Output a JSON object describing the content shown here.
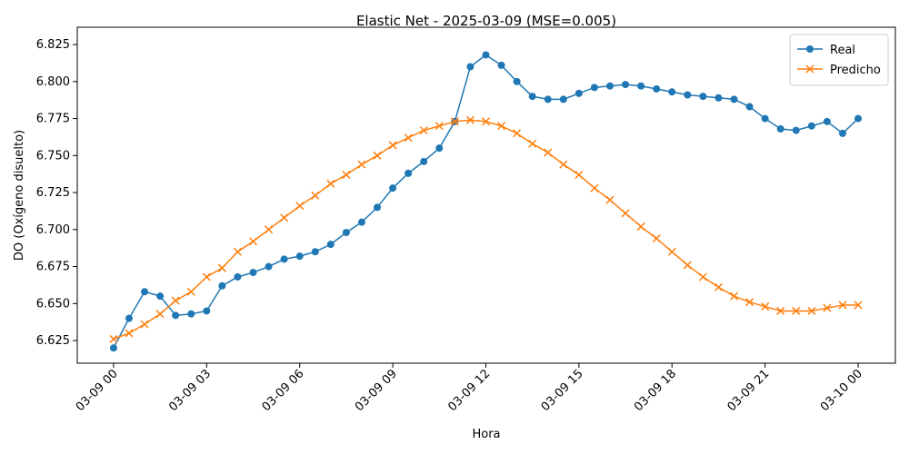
{
  "chart_data": {
    "type": "line",
    "title": "Elastic Net - 2025-03-09 (MSE=0.005)",
    "x_label": "Hora",
    "y_label": "DO (Oxígeno disuelto)",
    "x": [
      0,
      0.5,
      1,
      1.5,
      2,
      2.5,
      3,
      3.5,
      4,
      4.5,
      5,
      5.5,
      6,
      6.5,
      7,
      7.5,
      8,
      8.5,
      9,
      9.5,
      10,
      10.5,
      11,
      11.5,
      12,
      12.5,
      13,
      13.5,
      14,
      14.5,
      15,
      15.5,
      16,
      16.5,
      17,
      17.5,
      18,
      18.5,
      19,
      19.5,
      20,
      20.5,
      21,
      21.5,
      22,
      22.5,
      23,
      23.5,
      24
    ],
    "series": [
      {
        "name": "Real",
        "color": "#1f77b4",
        "marker": "circle",
        "values": [
          6.62,
          6.64,
          6.658,
          6.655,
          6.642,
          6.643,
          6.645,
          6.662,
          6.668,
          6.671,
          6.675,
          6.68,
          6.682,
          6.685,
          6.69,
          6.698,
          6.705,
          6.715,
          6.728,
          6.738,
          6.746,
          6.755,
          6.773,
          6.81,
          6.818,
          6.811,
          6.8,
          6.79,
          6.788,
          6.788,
          6.792,
          6.796,
          6.797,
          6.798,
          6.797,
          6.795,
          6.793,
          6.791,
          6.79,
          6.789,
          6.788,
          6.783,
          6.775,
          6.768,
          6.767,
          6.77,
          6.773,
          6.765,
          6.775
        ]
      },
      {
        "name": "Predicho",
        "color": "#ff7f0e",
        "marker": "x",
        "values": [
          6.626,
          6.63,
          6.636,
          6.643,
          6.652,
          6.658,
          6.668,
          6.674,
          6.685,
          6.692,
          6.7,
          6.708,
          6.716,
          6.723,
          6.731,
          6.737,
          6.744,
          6.75,
          6.757,
          6.762,
          6.767,
          6.77,
          6.773,
          6.774,
          6.773,
          6.77,
          6.765,
          6.758,
          6.752,
          6.744,
          6.737,
          6.728,
          6.72,
          6.711,
          6.702,
          6.694,
          6.685,
          6.676,
          6.668,
          6.661,
          6.655,
          6.651,
          6.648,
          6.645,
          6.645,
          6.645,
          6.647,
          6.649,
          6.649
        ]
      }
    ],
    "xlim": [
      -1.17,
      25.2
    ],
    "xticks": [
      {
        "value": 0,
        "label": "03-09 00"
      },
      {
        "value": 3,
        "label": "03-09 03"
      },
      {
        "value": 6,
        "label": "03-09 06"
      },
      {
        "value": 9,
        "label": "03-09 09"
      },
      {
        "value": 12,
        "label": "03-09 12"
      },
      {
        "value": 15,
        "label": "03-09 15"
      },
      {
        "value": 18,
        "label": "03-09 18"
      },
      {
        "value": 21,
        "label": "03-09 21"
      },
      {
        "value": 24,
        "label": "03-10 00"
      }
    ],
    "ylim": [
      6.6097,
      6.8367
    ],
    "yticks": [
      6.625,
      {
        "value": 6.65,
        "label": "6.650"
      },
      6.675,
      {
        "value": 6.7,
        "label": "6.700"
      },
      6.725,
      {
        "value": 6.75,
        "label": "6.750"
      },
      6.775,
      {
        "value": 6.8,
        "label": "6.800"
      },
      6.825
    ],
    "grid": false,
    "legend": "upper right"
  }
}
